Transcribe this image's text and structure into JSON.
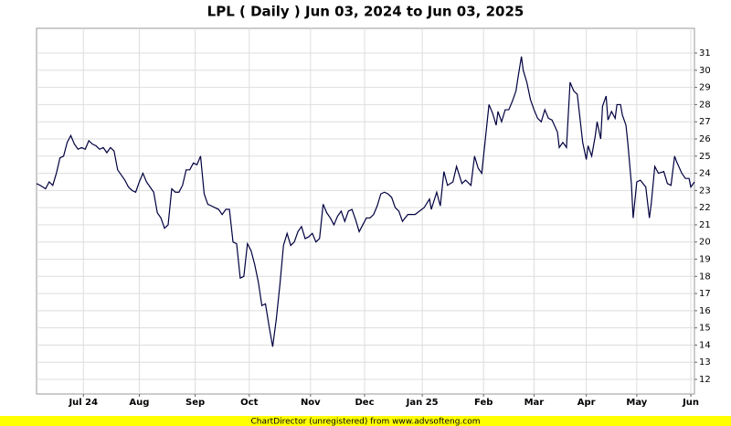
{
  "chart_data": {
    "type": "line",
    "title": "LPL ( Daily ) Jun 03, 2024 to Jun 03, 2025",
    "footer": "ChartDirector (unregistered) from www.advsofteng.com",
    "color": "#000040",
    "grid": true,
    "xlim": [
      0,
      365
    ],
    "ylim": [
      11.15,
      32.44
    ],
    "xticks": [
      {
        "value": 26,
        "label": "Jul 24"
      },
      {
        "value": 57,
        "label": "Aug"
      },
      {
        "value": 88,
        "label": "Sep"
      },
      {
        "value": 118,
        "label": "Oct"
      },
      {
        "value": 152,
        "label": "Nov"
      },
      {
        "value": 182,
        "label": "Dec"
      },
      {
        "value": 214,
        "label": "Jan 25"
      },
      {
        "value": 248,
        "label": "Feb"
      },
      {
        "value": 276,
        "label": "Mar"
      },
      {
        "value": 305,
        "label": "Apr"
      },
      {
        "value": 333,
        "label": "May"
      },
      {
        "value": 363,
        "label": "Jun"
      }
    ],
    "yticks": [
      12,
      13,
      14,
      15,
      16,
      17,
      18,
      19,
      20,
      21,
      22,
      23,
      24,
      25,
      26,
      27,
      28,
      29,
      30,
      31
    ],
    "x": [
      0,
      2,
      5,
      7,
      9,
      11,
      13,
      15,
      17,
      19,
      21,
      23,
      25,
      27,
      29,
      31,
      33,
      35,
      37,
      39,
      41,
      43,
      45,
      47,
      49,
      51,
      53,
      55,
      57,
      59,
      61,
      63,
      65,
      67,
      69,
      71,
      73,
      75,
      77,
      79,
      81,
      83,
      85,
      87,
      89,
      91,
      93,
      95,
      97,
      99,
      101,
      103,
      105,
      107,
      109,
      111,
      113,
      115,
      117,
      119,
      121,
      123,
      125,
      127,
      129,
      131,
      133,
      135,
      137,
      139,
      141,
      143,
      145,
      147,
      149,
      151,
      153,
      155,
      157,
      159,
      161,
      163,
      165,
      167,
      169,
      171,
      173,
      175,
      177,
      179,
      181,
      183,
      185,
      187,
      189,
      191,
      193,
      195,
      197,
      199,
      201,
      203,
      206,
      210,
      215,
      218,
      219,
      222,
      224,
      226,
      228,
      231,
      233,
      236,
      238,
      241,
      243,
      245,
      247,
      249,
      251,
      253,
      255,
      256,
      258,
      260,
      262,
      264,
      266,
      267,
      269,
      270,
      272,
      274,
      276,
      278,
      280,
      282,
      284,
      286,
      289,
      290,
      292,
      294,
      296,
      298,
      300,
      303,
      305,
      306,
      308,
      310,
      311,
      313,
      314,
      316,
      317,
      319,
      321,
      322,
      324,
      325,
      327,
      328,
      330,
      331,
      333,
      335,
      338,
      340,
      341,
      343,
      345,
      348,
      350,
      352,
      354,
      355,
      358,
      360,
      362,
      363,
      365
    ],
    "values": [
      23.4,
      23.3,
      23.1,
      23.5,
      23.3,
      24.0,
      24.9,
      25.0,
      25.8,
      26.2,
      25.7,
      25.4,
      25.5,
      25.4,
      25.9,
      25.7,
      25.6,
      25.4,
      25.5,
      25.2,
      25.5,
      25.3,
      24.2,
      23.9,
      23.6,
      23.2,
      23.0,
      22.9,
      23.5,
      24.0,
      23.5,
      23.2,
      22.9,
      21.7,
      21.4,
      20.8,
      21.0,
      23.1,
      22.9,
      22.9,
      23.3,
      24.2,
      24.2,
      24.6,
      24.5,
      25.0,
      22.8,
      22.2,
      22.1,
      22.0,
      21.9,
      21.6,
      21.9,
      21.9,
      20.0,
      19.9,
      17.9,
      18.0,
      19.9,
      19.5,
      18.7,
      17.7,
      16.3,
      16.4,
      15.1,
      13.9,
      15.5,
      17.5,
      19.8,
      20.5,
      19.8,
      20.0,
      20.6,
      20.9,
      20.2,
      20.3,
      20.5,
      20.0,
      20.2,
      22.2,
      21.7,
      21.4,
      21.0,
      21.5,
      21.8,
      21.2,
      21.8,
      21.9,
      21.3,
      20.6,
      21.0,
      21.4,
      21.4,
      21.6,
      22.1,
      22.8,
      22.9,
      22.8,
      22.6,
      22.0,
      21.8,
      21.2,
      21.6,
      21.6,
      22.0,
      22.5,
      21.9,
      22.9,
      22.1,
      24.1,
      23.3,
      23.5,
      24.4,
      23.4,
      23.6,
      23.3,
      25.0,
      24.3,
      24.0,
      26.0,
      28.0,
      27.5,
      26.8,
      27.6,
      27.0,
      27.7,
      27.7,
      28.2,
      28.8,
      29.5,
      30.8,
      30.0,
      29.3,
      28.3,
      27.7,
      27.2,
      27.0,
      27.7,
      27.2,
      27.1,
      26.4,
      25.5,
      25.8,
      25.5,
      29.3,
      28.8,
      28.6,
      25.8,
      24.8,
      25.6,
      25.0,
      26.2,
      27.0,
      26.0,
      27.9,
      28.5,
      27.1,
      27.6,
      27.2,
      28.0,
      28.0,
      27.4,
      26.8,
      25.8,
      23.4,
      21.4,
      23.5,
      23.6,
      23.2,
      21.4,
      22.2,
      24.4,
      24.0,
      24.1,
      23.4,
      23.3,
      25.0,
      24.7,
      24.0,
      23.7,
      23.7,
      23.2,
      23.5
    ]
  }
}
